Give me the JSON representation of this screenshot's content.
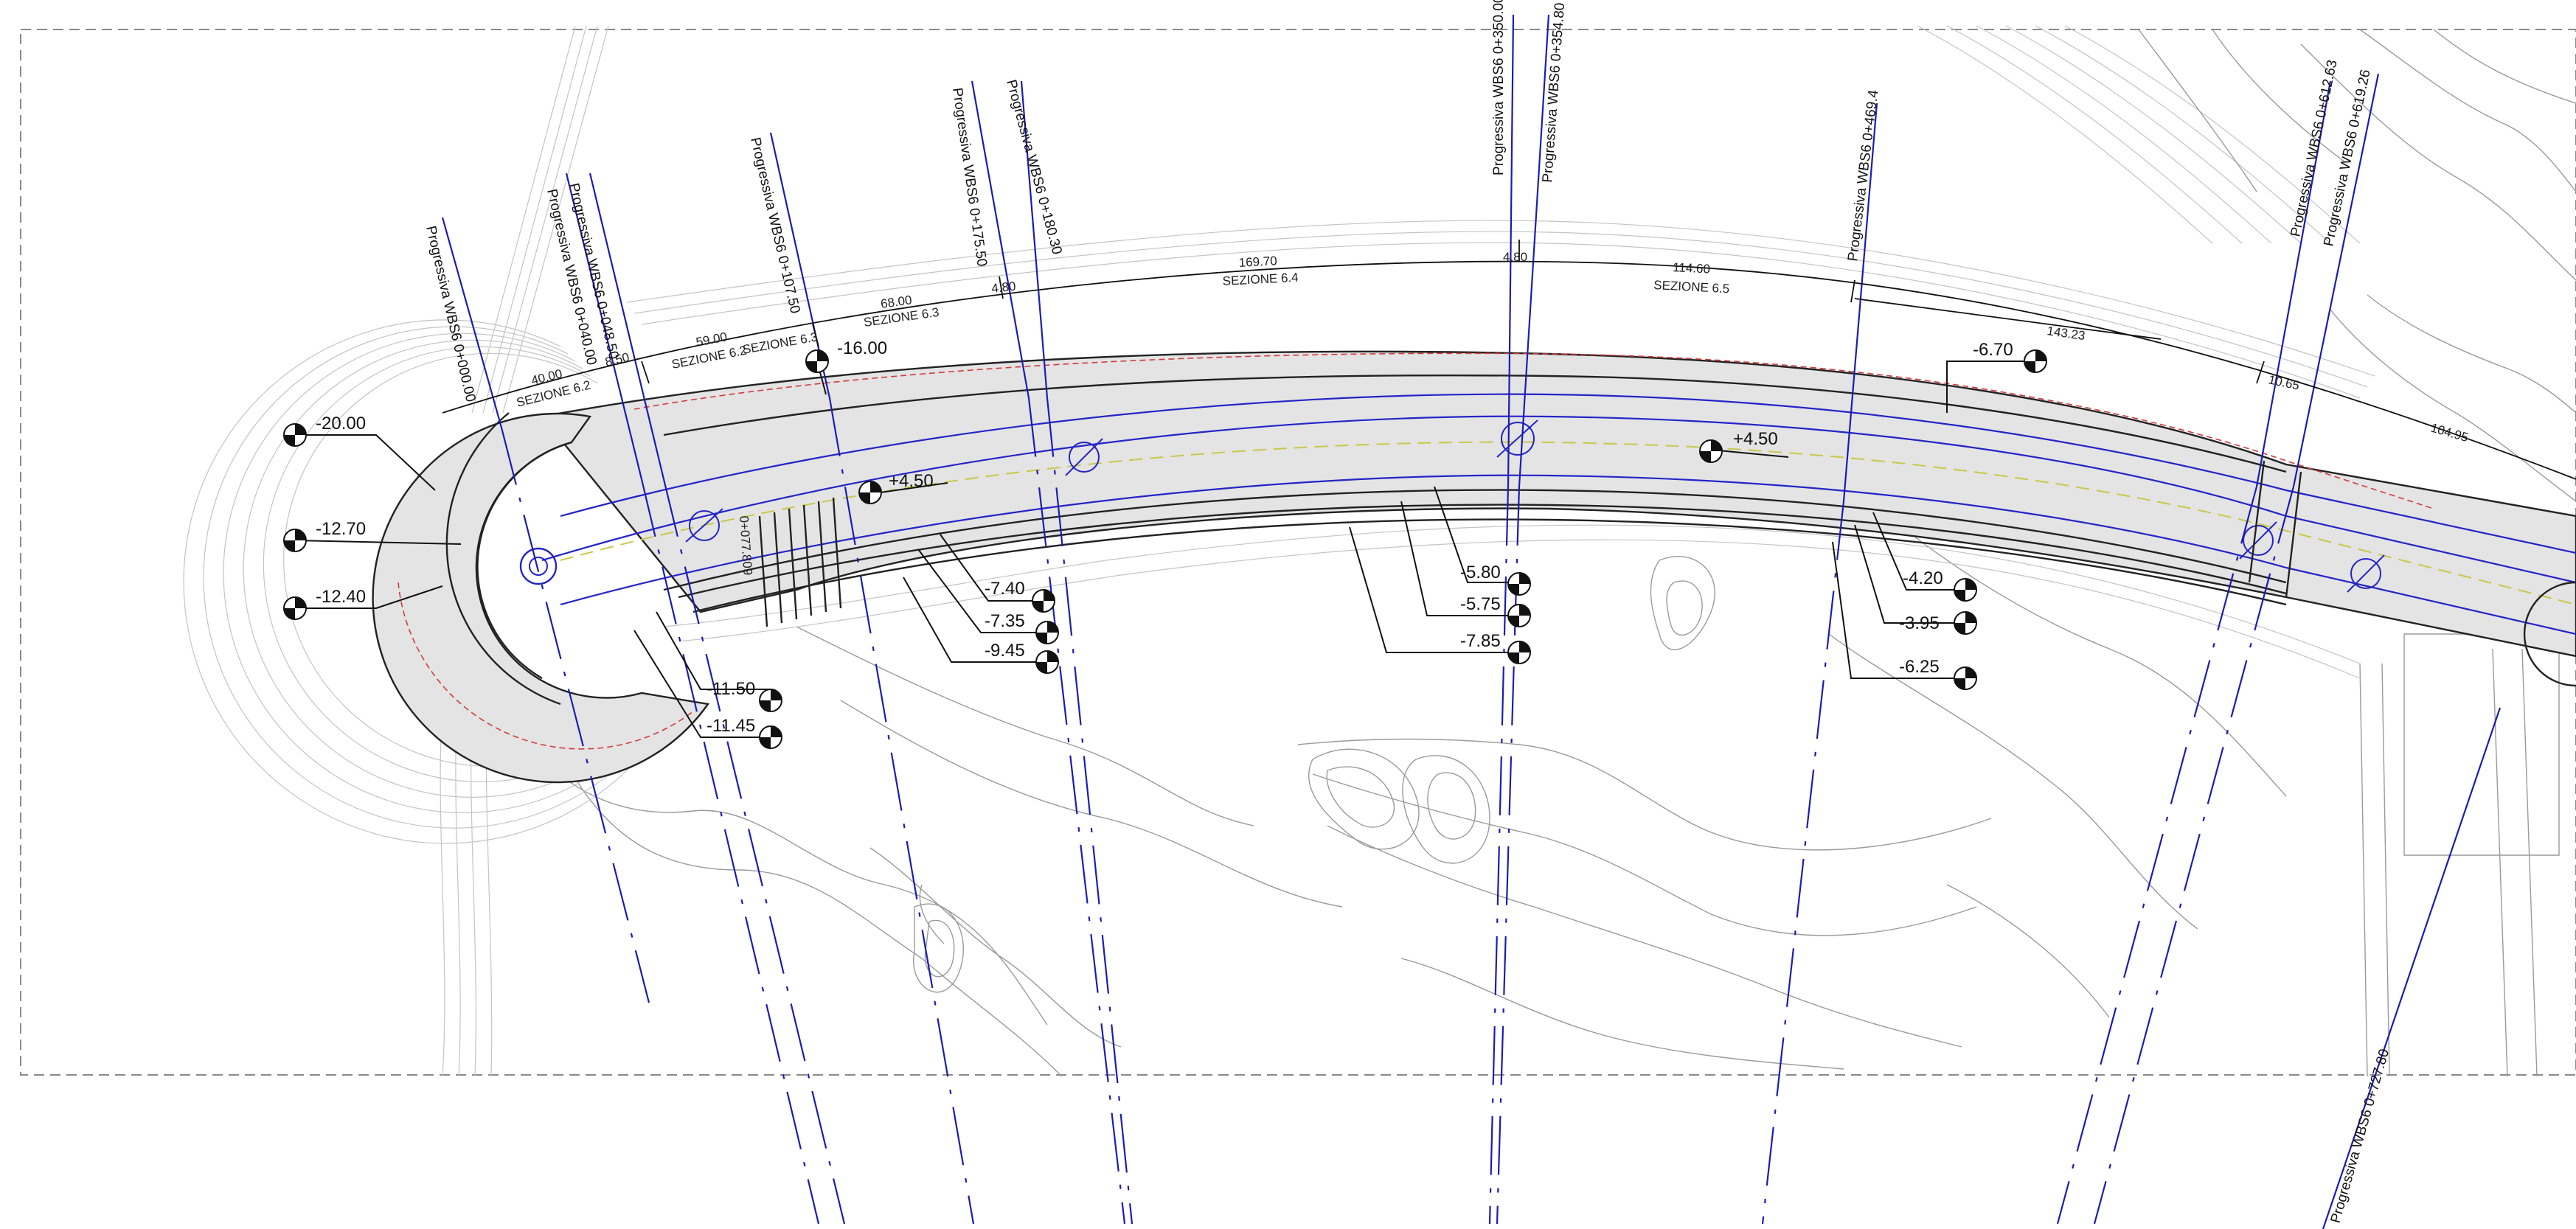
{
  "section_labels": [
    "Progressiva WBS6 0+000.00",
    "Progressiva WBS6 0+040.00",
    "Progressiva WBS6 0+048.50",
    "Progressiva WBS6 0+107.50",
    "Progressiva WBS6 0+175.50",
    "Progressiva WBS6 0+180.30",
    "Progressiva WBS6 0+350.00",
    "Progressiva WBS6 0+354.80",
    "Progressiva WBS6 0+469.4",
    "Progressiva WBS6 0+612.63",
    "Progressiva WBS6 0+619.26",
    "Progressiva WBS6 0+727.80"
  ],
  "elevation_markers": [
    {
      "label": "-20.00"
    },
    {
      "label": "-12.70"
    },
    {
      "label": "-12.40"
    },
    {
      "label": "-11.50"
    },
    {
      "label": "-11.45"
    },
    {
      "label": "-16.00"
    },
    {
      "label": "+4.50"
    },
    {
      "label": "-7.40"
    },
    {
      "label": "-7.35"
    },
    {
      "label": "-9.45"
    },
    {
      "label": "-5.80"
    },
    {
      "label": "-5.75"
    },
    {
      "label": "-7.85"
    },
    {
      "label": "+4.50"
    },
    {
      "label": "-6.70"
    },
    {
      "label": "-4.20"
    },
    {
      "label": "-3.95"
    },
    {
      "label": "-6.25"
    }
  ],
  "dimension_labels": [
    "40.00",
    "59.00",
    "68.00",
    "4.80",
    "169.70",
    "4.80",
    "114.60",
    "143.23",
    "10.65",
    "104.95",
    "8.50"
  ],
  "sezione_labels": [
    "SEZIONE 6.2",
    "SEZIONE 6.2",
    "SEZIONE 6.3",
    "SEZIONE 6.3",
    "SEZIONE 6.4",
    "SEZIONE 6.5"
  ],
  "chainage_label": "0+077.809",
  "colors": {
    "section_line": "#1c1cb4",
    "contour": "#9a9a9a",
    "road_fill": "#e4e4e4",
    "road_axis": "#c8c84a",
    "edge_red": "#d23c3c"
  }
}
